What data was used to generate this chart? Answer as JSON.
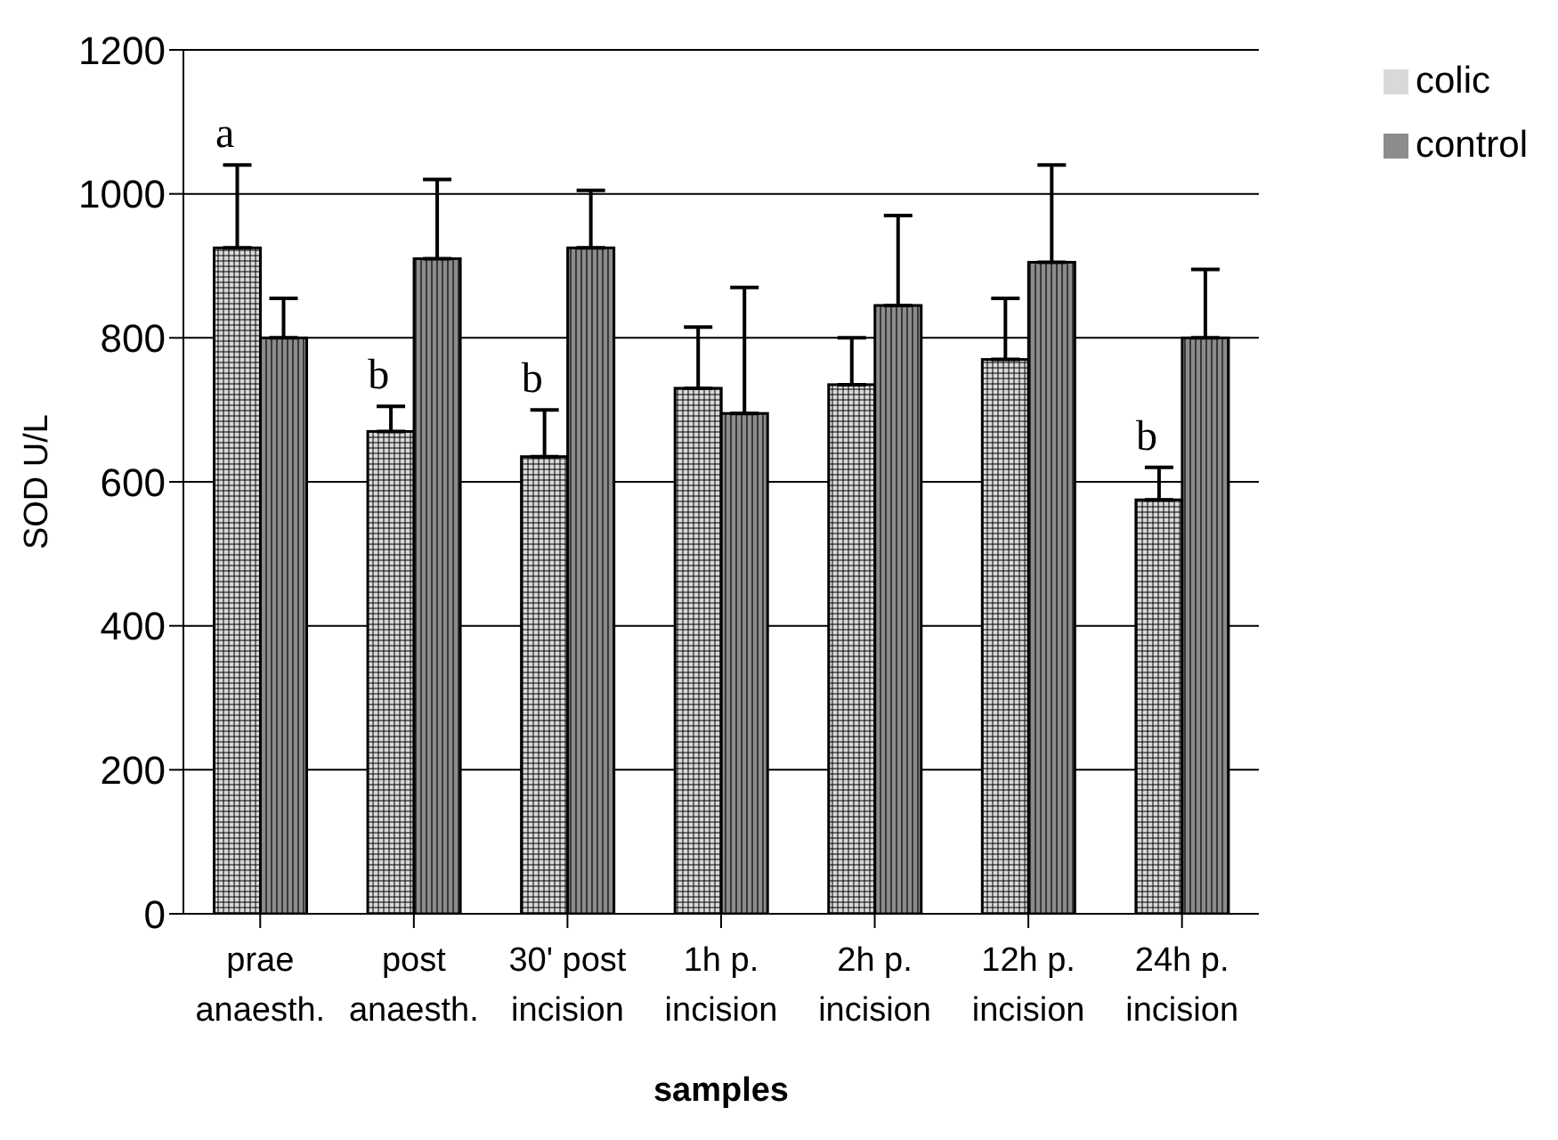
{
  "chart_data": {
    "type": "bar",
    "xlabel": "samples",
    "ylabel": "SOD U/L",
    "categories": [
      "prae\nanaesth.",
      "post\nanaesth.",
      "30' post\nincision",
      "1h p.\nincision",
      "2h p.\nincision",
      "12h p.\nincision",
      "24h p.\nincision"
    ],
    "series": [
      {
        "name": "colic",
        "color": "#d9d9d9",
        "values": [
          925,
          670,
          635,
          730,
          735,
          770,
          575
        ],
        "errors": [
          [
            925,
            1040
          ],
          [
            670,
            705
          ],
          [
            635,
            700
          ],
          [
            730,
            815
          ],
          [
            735,
            800
          ],
          [
            770,
            855
          ],
          [
            575,
            620
          ]
        ]
      },
      {
        "name": "control",
        "color": "#8c8c8c",
        "values": [
          800,
          910,
          925,
          695,
          845,
          905,
          800
        ],
        "errors": [
          [
            800,
            855
          ],
          [
            910,
            1020
          ],
          [
            925,
            1005
          ],
          [
            695,
            870
          ],
          [
            845,
            970
          ],
          [
            905,
            1040
          ],
          [
            800,
            895
          ]
        ]
      }
    ],
    "annotations": [
      {
        "text": "a",
        "x": "prae\nanaesth.",
        "y": 1040
      },
      {
        "text": "b",
        "x": "post\nanaesth.",
        "y": 705
      },
      {
        "text": "b",
        "x": "30' post\nincision",
        "y": 700
      },
      {
        "text": "b",
        "x": "24h p.\nincision",
        "y": 620
      }
    ],
    "ylim": [
      0,
      1200
    ],
    "yticks": [
      0,
      200,
      400,
      600,
      800,
      1000,
      1200
    ],
    "grid": "y",
    "legend": "top right"
  }
}
